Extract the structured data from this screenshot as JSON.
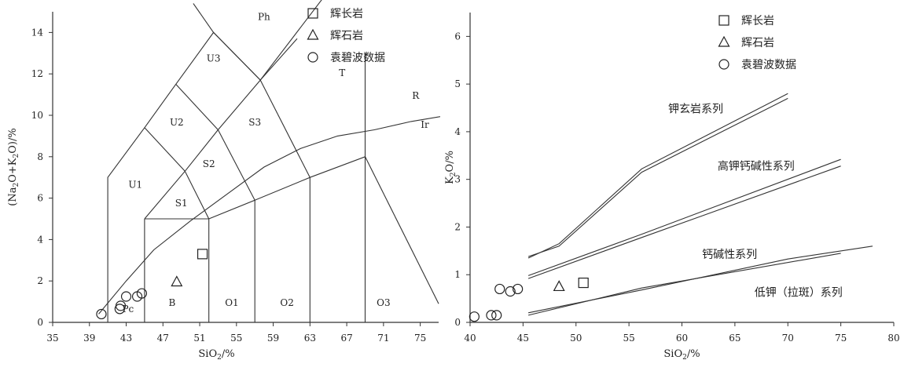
{
  "chart_data": [
    {
      "type": "scatter",
      "title": "",
      "xlabel": "SiO2/%",
      "ylabel": "(Na2O+K2O)/%",
      "xlim": [
        35,
        77
      ],
      "ylim": [
        0,
        15
      ],
      "xticks": [
        35,
        39,
        43,
        47,
        51,
        55,
        59,
        63,
        67,
        71,
        75
      ],
      "yticks": [
        0,
        2,
        4,
        6,
        8,
        10,
        12,
        14
      ],
      "fields": [
        {
          "label": "Ph",
          "x": 58,
          "y": 14.6
        },
        {
          "label": "U3",
          "x": 52.5,
          "y": 12.6
        },
        {
          "label": "U2",
          "x": 48.5,
          "y": 9.5
        },
        {
          "label": "U1",
          "x": 44,
          "y": 6.5
        },
        {
          "label": "S3",
          "x": 57,
          "y": 9.5
        },
        {
          "label": "S2",
          "x": 52,
          "y": 7.5
        },
        {
          "label": "S1",
          "x": 49,
          "y": 5.6
        },
        {
          "label": "T",
          "x": 66.5,
          "y": 11.9
        },
        {
          "label": "R",
          "x": 74.5,
          "y": 10.8
        },
        {
          "label": "Ir",
          "x": 75.5,
          "y": 9.4
        },
        {
          "label": "Pc",
          "x": 43.2,
          "y": 0.5
        },
        {
          "label": "B",
          "x": 48,
          "y": 0.8
        },
        {
          "label": "O1",
          "x": 54.5,
          "y": 0.8
        },
        {
          "label": "O2",
          "x": 60.5,
          "y": 0.8
        },
        {
          "label": "O3",
          "x": 71,
          "y": 0.8
        }
      ],
      "boundaries": [
        [
          [
            41,
            0
          ],
          [
            41,
            7
          ],
          [
            45,
            9.4
          ],
          [
            48.4,
            11.5
          ],
          [
            52.5,
            14
          ],
          [
            57.6,
            11.7
          ],
          [
            53,
            9.3
          ],
          [
            49.4,
            7.3
          ],
          [
            45,
            5
          ]
        ],
        [
          [
            45,
            5
          ],
          [
            45,
            0
          ]
        ],
        [
          [
            45,
            5
          ],
          [
            52,
            5
          ],
          [
            52,
            0
          ]
        ],
        [
          [
            52,
            5
          ],
          [
            57,
            5.9
          ],
          [
            57,
            0
          ]
        ],
        [
          [
            57,
            5.9
          ],
          [
            63,
            7
          ],
          [
            63,
            0
          ]
        ],
        [
          [
            63,
            7
          ],
          [
            69,
            8
          ],
          [
            69,
            0
          ]
        ],
        [
          [
            69,
            8
          ],
          [
            69,
            13
          ]
        ],
        [
          [
            69,
            8
          ],
          [
            77,
            0.9
          ]
        ],
        [
          [
            52,
            5
          ],
          [
            49.4,
            7.3
          ]
        ],
        [
          [
            57,
            5.9
          ],
          [
            53,
            9.3
          ]
        ],
        [
          [
            63,
            7
          ],
          [
            57.6,
            11.7
          ]
        ],
        [
          [
            45,
            9.4
          ],
          [
            49.4,
            7.3
          ]
        ],
        [
          [
            48.4,
            11.5
          ],
          [
            53,
            9.3
          ]
        ],
        [
          [
            52.5,
            14
          ],
          [
            57.6,
            11.7
          ],
          [
            61.6,
            13.7
          ]
        ],
        [
          [
            52.5,
            14
          ],
          [
            50.3,
            15.4
          ]
        ],
        [
          [
            57.6,
            11.7
          ],
          [
            65,
            16
          ]
        ]
      ],
      "alkaline_curve": [
        [
          40,
          0.4
        ],
        [
          43,
          2
        ],
        [
          46,
          3.5
        ],
        [
          50,
          4.9
        ],
        [
          54,
          6.2
        ],
        [
          58,
          7.5
        ],
        [
          62,
          8.4
        ],
        [
          66,
          9
        ],
        [
          70,
          9.3
        ],
        [
          74,
          9.7
        ],
        [
          78,
          10
        ]
      ],
      "series": [
        {
          "name": "辉长岩",
          "marker": "square",
          "points": [
            [
              51.3,
              3.3
            ]
          ]
        },
        {
          "name": "辉石岩",
          "marker": "triangle",
          "points": [
            [
              48.5,
              1.95
            ]
          ]
        },
        {
          "name": "袁碧波数据",
          "marker": "circle",
          "points": [
            [
              40.3,
              0.4
            ],
            [
              42.3,
              0.65
            ],
            [
              42.4,
              0.8
            ],
            [
              43,
              1.25
            ],
            [
              44.2,
              1.25
            ],
            [
              44.7,
              1.4
            ]
          ]
        }
      ],
      "legend": "top-center"
    },
    {
      "type": "scatter",
      "title": "",
      "xlabel": "SiO2/%",
      "ylabel": "K2O/%",
      "xlim": [
        40,
        80
      ],
      "ylim": [
        0,
        6.5
      ],
      "xticks": [
        40,
        45,
        50,
        55,
        60,
        65,
        70,
        75,
        80
      ],
      "yticks": [
        0,
        1,
        2,
        3,
        4,
        5,
        6
      ],
      "series_labels": [
        {
          "label": "钾玄岩系列",
          "x": 61.3,
          "y": 4.4
        },
        {
          "label": "高钾钙碱性系列",
          "x": 67,
          "y": 3.2
        },
        {
          "label": "钙碱性系列",
          "x": 64.5,
          "y": 1.35
        },
        {
          "label": "低钾（拉斑）系列",
          "x": 71,
          "y": 0.55
        }
      ],
      "boundaries": [
        [
          [
            45.5,
            1.38
          ],
          [
            48.4,
            1.6
          ],
          [
            56.2,
            3.15
          ],
          [
            70,
            4.7
          ]
        ],
        [
          [
            45.5,
            1.35
          ],
          [
            48.4,
            1.65
          ],
          [
            56.2,
            3.22
          ],
          [
            70,
            4.8
          ]
        ],
        [
          [
            45.5,
            0.92
          ],
          [
            56.2,
            1.78
          ],
          [
            75,
            3.28
          ]
        ],
        [
          [
            45.5,
            0.98
          ],
          [
            56.2,
            1.85
          ],
          [
            75,
            3.42
          ]
        ],
        [
          [
            45.5,
            0.15
          ],
          [
            56.2,
            0.72
          ],
          [
            75,
            1.45
          ]
        ],
        [
          [
            45.5,
            0.2
          ],
          [
            56.2,
            0.68
          ],
          [
            70,
            1.33
          ],
          [
            78,
            1.6
          ]
        ]
      ],
      "series": [
        {
          "name": "辉长岩",
          "marker": "square",
          "points": [
            [
              50.7,
              0.83
            ]
          ]
        },
        {
          "name": "辉石岩",
          "marker": "triangle",
          "points": [
            [
              48.4,
              0.75
            ]
          ]
        },
        {
          "name": "袁碧波数据",
          "marker": "circle",
          "points": [
            [
              40.4,
              0.12
            ],
            [
              42,
              0.15
            ],
            [
              42.5,
              0.15
            ],
            [
              42.8,
              0.7
            ],
            [
              43.8,
              0.65
            ],
            [
              44.5,
              0.7
            ]
          ]
        }
      ],
      "legend": "top-center"
    }
  ]
}
